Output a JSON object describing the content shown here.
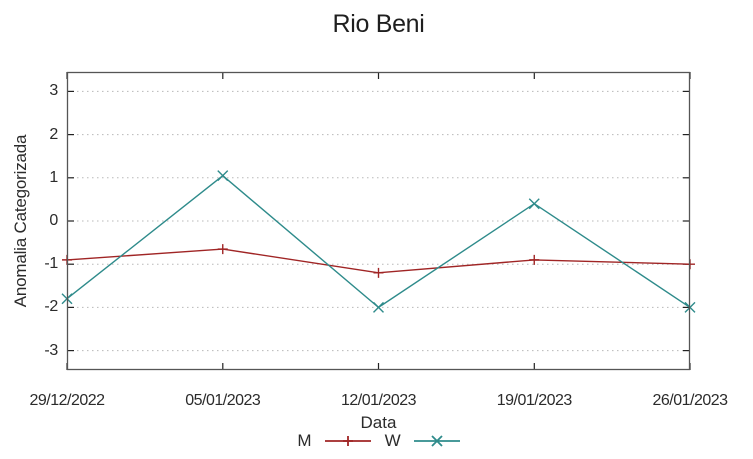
{
  "chart_data": {
    "type": "line",
    "title": "Rio Beni",
    "xlabel": "Data",
    "ylabel": "Anomalia Categorizada",
    "categories": [
      "29/12/2022",
      "05/01/2023",
      "12/01/2023",
      "19/01/2023",
      "26/01/2023"
    ],
    "series": [
      {
        "name": "M",
        "marker": "plus",
        "color": "#a02525",
        "values": [
          -0.9,
          -0.65,
          -1.2,
          -0.9,
          -1.0
        ]
      },
      {
        "name": "W",
        "marker": "cross",
        "color": "#2e8b8b",
        "values": [
          -1.8,
          1.05,
          -2.0,
          0.4,
          -2.0
        ]
      }
    ],
    "yticks": [
      3,
      2,
      1,
      0,
      -1,
      -2,
      -3
    ],
    "ylim": [
      -3.45,
      3.45
    ],
    "grid": "horizontal-dotted",
    "legend_position": "bottom-center",
    "colors": {
      "background": "#ffffff",
      "plot_border": "#555555",
      "tick_mark": "#222222",
      "gridline": "#b8b8b8",
      "text": "#2b2b2b"
    }
  }
}
